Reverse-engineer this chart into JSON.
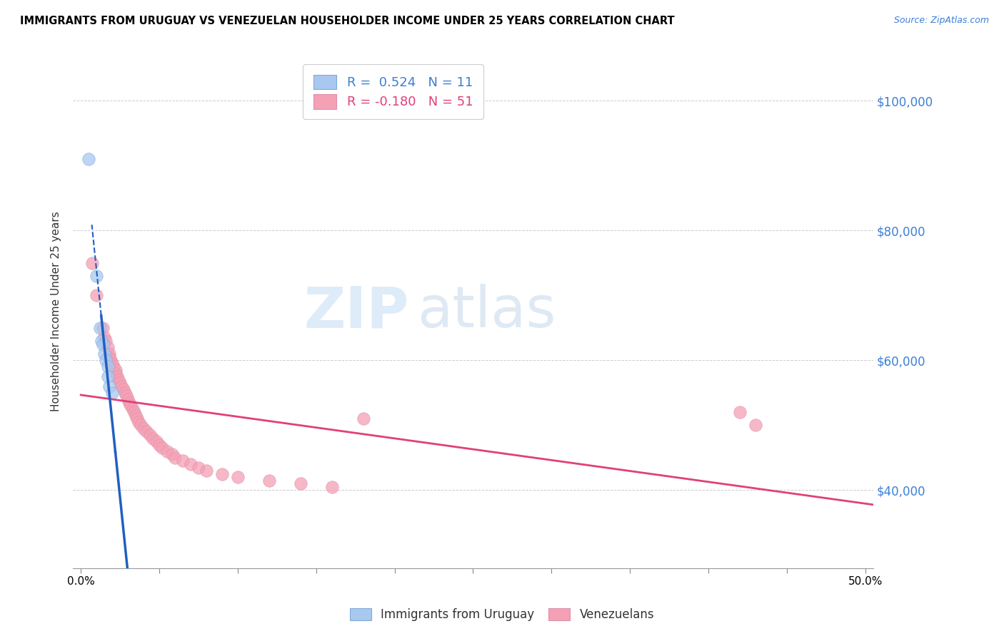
{
  "title": "IMMIGRANTS FROM URUGUAY VS VENEZUELAN HOUSEHOLDER INCOME UNDER 25 YEARS CORRELATION CHART",
  "source": "Source: ZipAtlas.com",
  "ylabel": "Householder Income Under 25 years",
  "y_tick_labels": [
    "$40,000",
    "$60,000",
    "$80,000",
    "$100,000"
  ],
  "y_tick_values": [
    40000,
    60000,
    80000,
    100000
  ],
  "ylim": [
    28000,
    107000
  ],
  "xlim": [
    -0.005,
    0.505
  ],
  "color_uruguay": "#a8c8f0",
  "color_venezuela": "#f4a0b5",
  "trendline_uruguay_color": "#2060c0",
  "trendline_venezuela_color": "#e0407a",
  "watermark_zip": "ZIP",
  "watermark_atlas": "atlas",
  "uruguay_points": [
    [
      0.005,
      91000
    ],
    [
      0.01,
      73000
    ],
    [
      0.012,
      65000
    ],
    [
      0.013,
      63000
    ],
    [
      0.014,
      62500
    ],
    [
      0.015,
      61000
    ],
    [
      0.016,
      60000
    ],
    [
      0.017,
      59000
    ],
    [
      0.017,
      57500
    ],
    [
      0.018,
      56000
    ],
    [
      0.02,
      55000
    ]
  ],
  "venezuela_points": [
    [
      0.007,
      75000
    ],
    [
      0.01,
      70000
    ],
    [
      0.014,
      65000
    ],
    [
      0.015,
      63500
    ],
    [
      0.016,
      63000
    ],
    [
      0.017,
      62000
    ],
    [
      0.018,
      61000
    ],
    [
      0.018,
      60500
    ],
    [
      0.019,
      60000
    ],
    [
      0.02,
      59500
    ],
    [
      0.021,
      59000
    ],
    [
      0.022,
      58500
    ],
    [
      0.022,
      58000
    ],
    [
      0.023,
      57500
    ],
    [
      0.024,
      57000
    ],
    [
      0.025,
      56500
    ],
    [
      0.026,
      56000
    ],
    [
      0.027,
      55500
    ],
    [
      0.028,
      55000
    ],
    [
      0.029,
      54500
    ],
    [
      0.03,
      54000
    ],
    [
      0.031,
      53500
    ],
    [
      0.032,
      53000
    ],
    [
      0.033,
      52500
    ],
    [
      0.034,
      52000
    ],
    [
      0.035,
      51500
    ],
    [
      0.036,
      51000
    ],
    [
      0.037,
      50500
    ],
    [
      0.038,
      50000
    ],
    [
      0.04,
      49500
    ],
    [
      0.042,
      49000
    ],
    [
      0.044,
      48500
    ],
    [
      0.046,
      48000
    ],
    [
      0.048,
      47500
    ],
    [
      0.05,
      47000
    ],
    [
      0.052,
      46500
    ],
    [
      0.055,
      46000
    ],
    [
      0.058,
      45500
    ],
    [
      0.06,
      45000
    ],
    [
      0.065,
      44500
    ],
    [
      0.07,
      44000
    ],
    [
      0.075,
      43500
    ],
    [
      0.08,
      43000
    ],
    [
      0.09,
      42500
    ],
    [
      0.1,
      42000
    ],
    [
      0.12,
      41500
    ],
    [
      0.14,
      41000
    ],
    [
      0.16,
      40500
    ],
    [
      0.18,
      51000
    ],
    [
      0.42,
      52000
    ],
    [
      0.43,
      50000
    ]
  ],
  "x_ticks": [
    0.0,
    0.05,
    0.1,
    0.15,
    0.2,
    0.25,
    0.3,
    0.35,
    0.4,
    0.45,
    0.5
  ],
  "x_tick_labels_show": [
    "0.0%",
    "",
    "",
    "",
    "",
    "",
    "",
    "",
    "",
    "",
    "50.0%"
  ]
}
